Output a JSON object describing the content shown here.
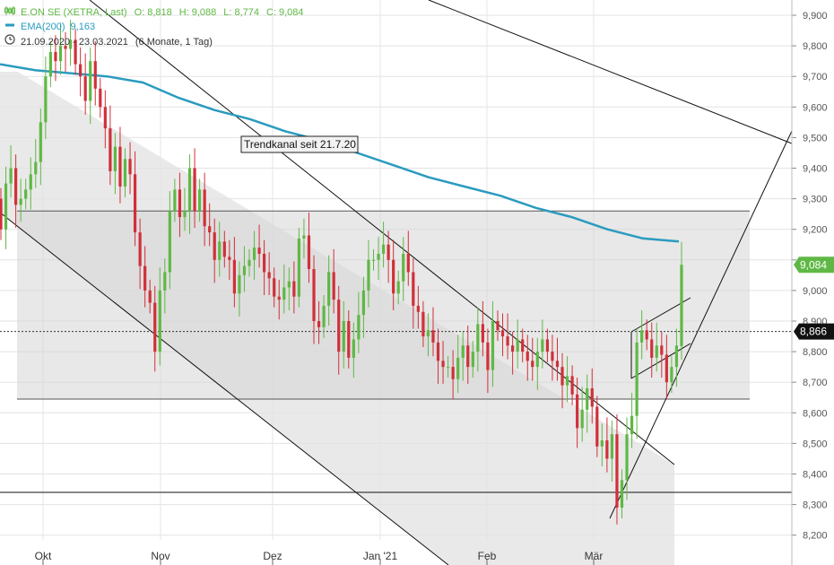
{
  "legend": {
    "instrument": "E.ON SE (XETRA, Last)",
    "ohlc": {
      "o_label": "O:",
      "o": "8,818",
      "h_label": "H:",
      "h": "9,088",
      "l_label": "L:",
      "l": "8,774",
      "c_label": "C:",
      "c": "9,084"
    },
    "ema_label": "EMA(200)",
    "ema_value": "9,163",
    "date_range": "21.09.2020 - 23.03.2021",
    "period": "(6 Monate, 1 Tag)",
    "candle_icon": "candlestick-icon",
    "ema_icon": "line-swatch-icon",
    "clock_icon": "clock-icon"
  },
  "annotation": "Trendkanal seit 21.7.20",
  "price_tags": {
    "last": "9,084",
    "crosshair": "8,866"
  },
  "colors": {
    "up": "#5fb845",
    "down": "#d0303a",
    "ema": "#2a9bbf",
    "band": "#d6d6d6",
    "channel": "#e2e2e2"
  },
  "chart_data": {
    "type": "candlestick",
    "title": "",
    "x_ticks": [
      "Okt",
      "Nov",
      "Dez",
      "Jan '21",
      "Feb",
      "Mär"
    ],
    "y_ticks": [
      "9,900",
      "9,800",
      "9,700",
      "9,600",
      "9,500",
      "9,400",
      "9,300",
      "9,200",
      "9,100",
      "9,000",
      "8,900",
      "8,800",
      "8,700",
      "8,600",
      "8,500",
      "8,400",
      "8,300",
      "8,200"
    ],
    "ylim": [
      8.15,
      9.95
    ],
    "y_scale": "linear",
    "grid": true,
    "date_range": [
      "2020-09-21",
      "2021-03-23"
    ],
    "ema200_trend": [
      9.74,
      9.72,
      9.71,
      9.7,
      9.68,
      9.63,
      9.59,
      9.56,
      9.52,
      9.49,
      9.45,
      9.41,
      9.37,
      9.34,
      9.31,
      9.27,
      9.24,
      9.2,
      9.17,
      9.16
    ],
    "horizontal_lines": [
      8.34
    ],
    "price_band": [
      8.645,
      9.26
    ],
    "last_close": 9.084,
    "crosshair_level": 8.866,
    "sessions": {
      "close": [
        9.2,
        9.35,
        9.4,
        9.28,
        9.3,
        9.33,
        9.38,
        9.42,
        9.55,
        9.7,
        9.78,
        9.75,
        9.8,
        9.79,
        9.82,
        9.74,
        9.7,
        9.62,
        9.75,
        9.66,
        9.6,
        9.53,
        9.39,
        9.47,
        9.34,
        9.43,
        9.38,
        9.19,
        9.08,
        9.0,
        8.96,
        8.8,
        9.0,
        9.06,
        9.26,
        9.33,
        9.24,
        9.26,
        9.4,
        9.26,
        9.33,
        9.21,
        9.19,
        9.1,
        9.16,
        9.11,
        9.1,
        8.99,
        9.05,
        9.08,
        9.1,
        9.14,
        9.12,
        9.06,
        9.04,
        8.98,
        8.97,
        9.01,
        9.03,
        8.98,
        9.17,
        9.18,
        9.07,
        8.9,
        8.88,
        8.95,
        9.06,
        8.97,
        8.8,
        8.9,
        8.78,
        8.84,
        8.92,
        9.0,
        9.1,
        9.1,
        9.12,
        9.15,
        9.1,
        8.99,
        9.03,
        9.12,
        9.06,
        8.95,
        8.93,
        8.85,
        8.87,
        8.83,
        8.77,
        8.75,
        8.75,
        8.71,
        8.78,
        8.82,
        8.75,
        8.8,
        8.89,
        8.83,
        8.74,
        8.9,
        8.87,
        8.85,
        8.82,
        8.8,
        8.84,
        8.8,
        8.77,
        8.75,
        8.8,
        8.84,
        8.8,
        8.77,
        8.75,
        8.69,
        8.72,
        8.66,
        8.55,
        8.61,
        8.68,
        8.62,
        8.49,
        8.51,
        8.45,
        8.53,
        8.29,
        8.38,
        8.53,
        8.59,
        8.83,
        8.87,
        8.84,
        8.78,
        8.82,
        8.79,
        8.7,
        8.75,
        8.82,
        9.084
      ],
      "open": [
        9.3,
        9.2,
        9.35,
        9.4,
        9.28,
        9.3,
        9.33,
        9.38,
        9.42,
        9.55,
        9.7,
        9.78,
        9.75,
        9.8,
        9.79,
        9.82,
        9.74,
        9.7,
        9.62,
        9.75,
        9.66,
        9.6,
        9.53,
        9.39,
        9.47,
        9.34,
        9.43,
        9.38,
        9.19,
        9.08,
        9.0,
        8.96,
        8.8,
        9.0,
        9.06,
        9.26,
        9.33,
        9.24,
        9.26,
        9.4,
        9.26,
        9.33,
        9.21,
        9.19,
        9.1,
        9.16,
        9.11,
        9.1,
        8.99,
        9.05,
        9.08,
        9.1,
        9.14,
        9.12,
        9.06,
        9.04,
        8.98,
        8.97,
        9.01,
        9.03,
        8.98,
        9.17,
        9.18,
        9.07,
        8.9,
        8.88,
        8.95,
        9.06,
        8.97,
        8.8,
        8.9,
        8.78,
        8.84,
        8.92,
        9.0,
        9.1,
        9.1,
        9.12,
        9.15,
        9.1,
        8.99,
        9.03,
        9.12,
        9.06,
        8.95,
        8.93,
        8.85,
        8.87,
        8.83,
        8.77,
        8.75,
        8.75,
        8.71,
        8.78,
        8.82,
        8.75,
        8.8,
        8.89,
        8.83,
        8.74,
        8.9,
        8.87,
        8.85,
        8.82,
        8.8,
        8.84,
        8.8,
        8.77,
        8.75,
        8.8,
        8.84,
        8.8,
        8.77,
        8.75,
        8.69,
        8.72,
        8.66,
        8.55,
        8.61,
        8.68,
        8.62,
        8.49,
        8.51,
        8.45,
        8.53,
        8.29,
        8.38,
        8.53,
        8.59,
        8.83,
        8.87,
        8.84,
        8.78,
        8.82,
        8.79,
        8.7,
        8.75,
        8.818
      ]
    }
  }
}
